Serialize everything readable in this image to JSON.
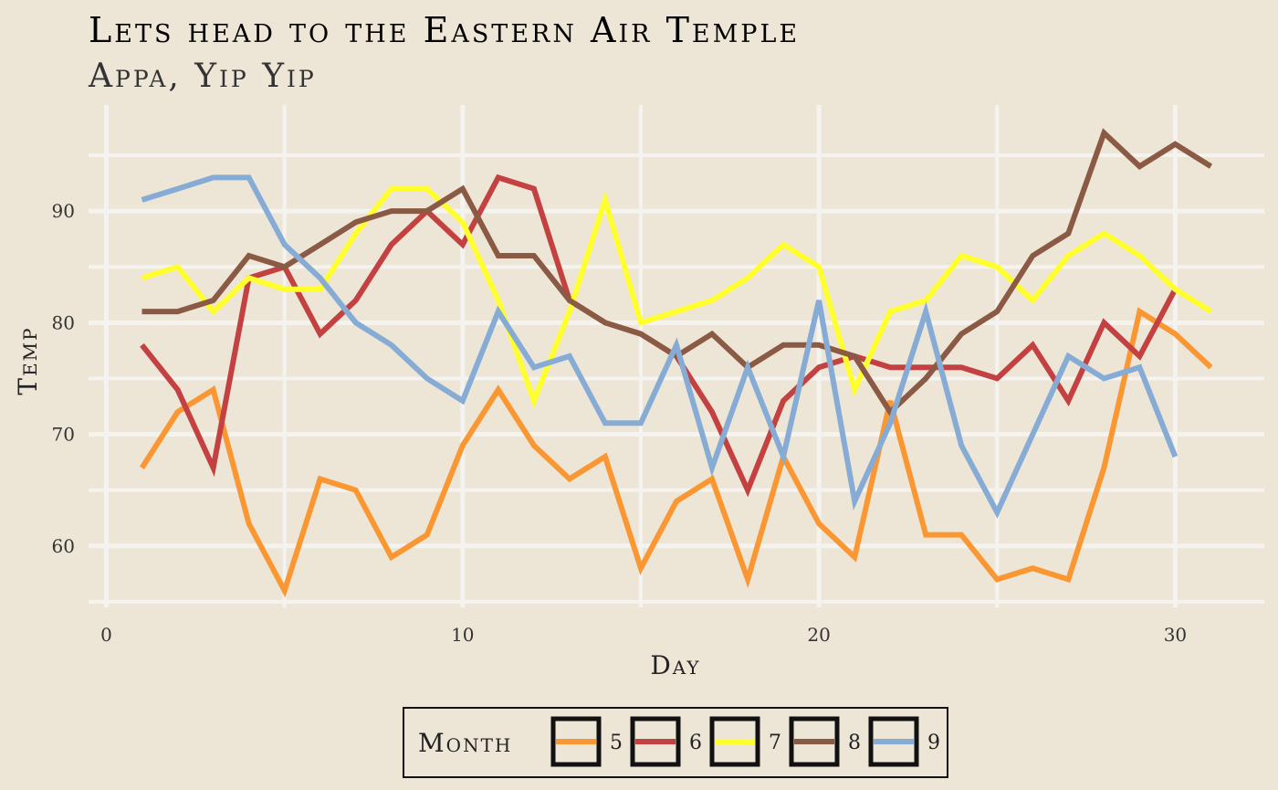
{
  "chart_data": {
    "type": "line",
    "title": "Lets head to the Eastern Air Temple",
    "subtitle": "Appa, Yip Yip",
    "xlabel": "Day",
    "ylabel": "Temp",
    "xlim": [
      -0.5,
      32.5
    ],
    "ylim": [
      54.5,
      99.5
    ],
    "x_ticks": [
      0,
      10,
      20,
      30
    ],
    "y_ticks": [
      60,
      70,
      80,
      90
    ],
    "grid": true,
    "legend": {
      "title": "Month",
      "position": "bottom"
    },
    "series": [
      {
        "name": "5",
        "color": "#FB9733",
        "x": [
          1,
          2,
          3,
          4,
          5,
          6,
          7,
          8,
          9,
          10,
          11,
          12,
          13,
          14,
          15,
          16,
          17,
          18,
          19,
          20,
          21,
          22,
          23,
          24,
          25,
          26,
          27,
          28,
          29,
          30,
          31
        ],
        "y": [
          67,
          72,
          74,
          62,
          56,
          66,
          65,
          59,
          61,
          69,
          74,
          69,
          66,
          68,
          58,
          64,
          66,
          57,
          68,
          62,
          59,
          73,
          61,
          61,
          57,
          58,
          57,
          67,
          81,
          79,
          76
        ]
      },
      {
        "name": "6",
        "color": "#C44141",
        "x": [
          1,
          2,
          3,
          4,
          5,
          6,
          7,
          8,
          9,
          10,
          11,
          12,
          13,
          14,
          15,
          16,
          17,
          18,
          19,
          20,
          21,
          22,
          23,
          24,
          25,
          26,
          27,
          28,
          29,
          30
        ],
        "y": [
          78,
          74,
          67,
          84,
          85,
          79,
          82,
          87,
          90,
          87,
          93,
          92,
          82,
          80,
          79,
          77,
          72,
          65,
          73,
          76,
          77,
          76,
          76,
          76,
          75,
          78,
          73,
          80,
          77,
          83
        ]
      },
      {
        "name": "7",
        "color": "#FFFF2E",
        "x": [
          1,
          2,
          3,
          4,
          5,
          6,
          7,
          8,
          9,
          10,
          11,
          12,
          13,
          14,
          15,
          16,
          17,
          18,
          19,
          20,
          21,
          22,
          23,
          24,
          25,
          26,
          27,
          28,
          29,
          30,
          31
        ],
        "y": [
          84,
          85,
          81,
          84,
          83,
          83,
          88,
          92,
          92,
          89,
          82,
          73,
          81,
          91,
          80,
          81,
          82,
          84,
          87,
          85,
          74,
          81,
          82,
          86,
          85,
          82,
          86,
          88,
          86,
          83,
          81
        ]
      },
      {
        "name": "8",
        "color": "#8A5A44",
        "x": [
          1,
          2,
          3,
          4,
          5,
          6,
          7,
          8,
          9,
          10,
          11,
          12,
          13,
          14,
          15,
          16,
          17,
          18,
          19,
          20,
          21,
          22,
          23,
          24,
          25,
          26,
          27,
          28,
          29,
          30,
          31
        ],
        "y": [
          81,
          81,
          82,
          86,
          85,
          87,
          89,
          90,
          90,
          92,
          86,
          86,
          82,
          80,
          79,
          77,
          79,
          76,
          78,
          78,
          77,
          72,
          75,
          79,
          81,
          86,
          88,
          97,
          94,
          96,
          94
        ]
      },
      {
        "name": "9",
        "color": "#86ACD5",
        "x": [
          1,
          2,
          3,
          4,
          5,
          6,
          7,
          8,
          9,
          10,
          11,
          12,
          13,
          14,
          15,
          16,
          17,
          18,
          19,
          20,
          21,
          22,
          23,
          24,
          25,
          26,
          27,
          28,
          29,
          30
        ],
        "y": [
          91,
          92,
          93,
          93,
          87,
          84,
          80,
          78,
          75,
          73,
          81,
          76,
          77,
          71,
          71,
          78,
          67,
          76,
          68,
          82,
          64,
          71,
          81,
          69,
          63,
          70,
          77,
          75,
          76,
          68
        ]
      }
    ]
  }
}
